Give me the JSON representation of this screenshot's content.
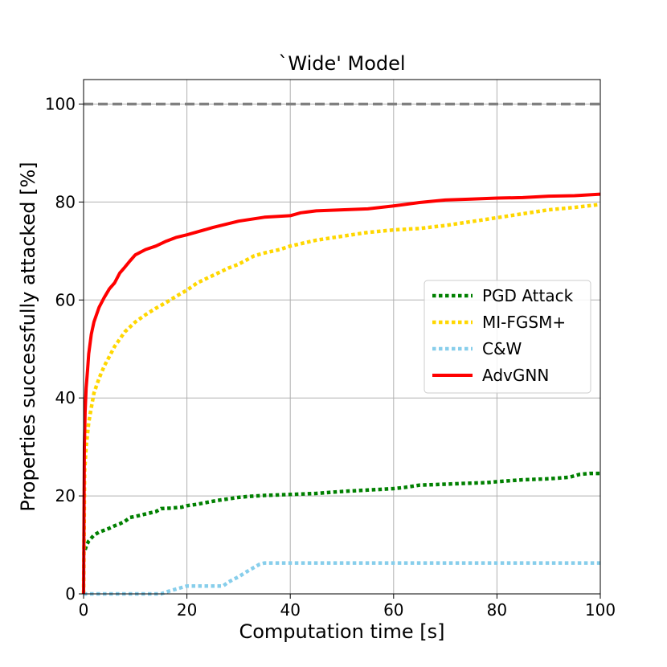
{
  "chart_data": {
    "type": "line",
    "title": "`Wide' Model",
    "xlabel": "Computation time [s]",
    "ylabel": "Properties successfully attacked [%]",
    "xlim": [
      0,
      100
    ],
    "ylim": [
      0,
      105
    ],
    "xticks": [
      0,
      20,
      40,
      60,
      80,
      100
    ],
    "yticks": [
      0,
      20,
      40,
      60,
      80,
      100
    ],
    "grid": true,
    "legend_position": "center-right",
    "reference_line": {
      "y": 100,
      "color": "#808080",
      "style": "dashed"
    },
    "series": [
      {
        "name": "PGD Attack",
        "color": "#008000",
        "style": "dotted",
        "x": [
          0.3,
          0.6,
          1,
          2,
          3,
          4,
          5,
          6,
          7,
          8,
          9,
          10,
          12,
          14,
          15,
          17,
          19,
          20,
          22,
          24,
          26,
          28,
          30,
          32,
          35,
          40,
          45,
          50,
          55,
          60,
          62,
          65,
          70,
          75,
          78,
          80,
          85,
          90,
          94,
          96,
          98,
          100
        ],
        "y": [
          9.0,
          10.0,
          10.8,
          12.0,
          12.6,
          13.0,
          13.4,
          13.9,
          14.3,
          14.8,
          15.6,
          15.8,
          16.3,
          16.8,
          17.4,
          17.5,
          17.7,
          18.0,
          18.3,
          18.7,
          19.1,
          19.4,
          19.7,
          19.9,
          20.1,
          20.3,
          20.5,
          20.9,
          21.2,
          21.5,
          21.7,
          22.2,
          22.4,
          22.6,
          22.7,
          22.9,
          23.3,
          23.5,
          23.8,
          24.4,
          24.6,
          24.6
        ]
      },
      {
        "name": "MI-FGSM+",
        "color": "#ffd700",
        "style": "dotted",
        "x": [
          0,
          0.2,
          0.5,
          1,
          1.5,
          2,
          3,
          4,
          5,
          6,
          7,
          8,
          9,
          10,
          12,
          14,
          16,
          18,
          20,
          22,
          24,
          26,
          28,
          30,
          33,
          35,
          38,
          40,
          45,
          50,
          55,
          60,
          65,
          70,
          75,
          80,
          85,
          90,
          95,
          100
        ],
        "y": [
          0,
          25,
          30,
          35,
          38,
          41,
          44,
          46.5,
          48.5,
          50.5,
          52,
          53.5,
          54.5,
          55.5,
          57,
          58.3,
          59.5,
          60.8,
          62,
          63.5,
          64.5,
          65.5,
          66.5,
          67.3,
          69,
          69.6,
          70.3,
          71.0,
          72.2,
          73.0,
          73.8,
          74.3,
          74.6,
          75.2,
          76.0,
          76.8,
          77.6,
          78.4,
          78.9,
          79.5
        ]
      },
      {
        "name": "C&W",
        "color": "#87ceeb",
        "style": "dotted",
        "x": [
          0,
          10,
          15,
          16,
          18,
          20,
          27,
          28,
          30,
          32,
          34,
          35,
          40,
          50,
          60,
          70,
          80,
          90,
          100
        ],
        "y": [
          0,
          0,
          0,
          0.4,
          1.0,
          1.6,
          1.6,
          2.4,
          3.5,
          4.8,
          6.0,
          6.3,
          6.3,
          6.3,
          6.3,
          6.3,
          6.3,
          6.3,
          6.3
        ]
      },
      {
        "name": "AdvGNN",
        "color": "#ff0000",
        "style": "solid",
        "x": [
          0,
          0.15,
          0.3,
          0.5,
          0.8,
          1,
          1.5,
          2,
          3,
          4,
          5,
          6,
          7,
          8,
          9,
          10,
          12,
          14,
          16,
          18,
          20,
          25,
          30,
          35,
          40,
          42,
          45,
          50,
          55,
          60,
          65,
          70,
          75,
          80,
          85,
          90,
          95,
          100
        ],
        "y": [
          0,
          30,
          37,
          42,
          46,
          49,
          53,
          55.5,
          58.5,
          60.5,
          62.3,
          63.5,
          65.5,
          66.7,
          68,
          69.2,
          70.3,
          71.0,
          72.0,
          72.8,
          73.3,
          74.8,
          76.1,
          76.9,
          77.2,
          77.8,
          78.2,
          78.4,
          78.6,
          79.2,
          79.9,
          80.4,
          80.6,
          80.8,
          80.9,
          81.2,
          81.3,
          81.6
        ]
      }
    ]
  }
}
